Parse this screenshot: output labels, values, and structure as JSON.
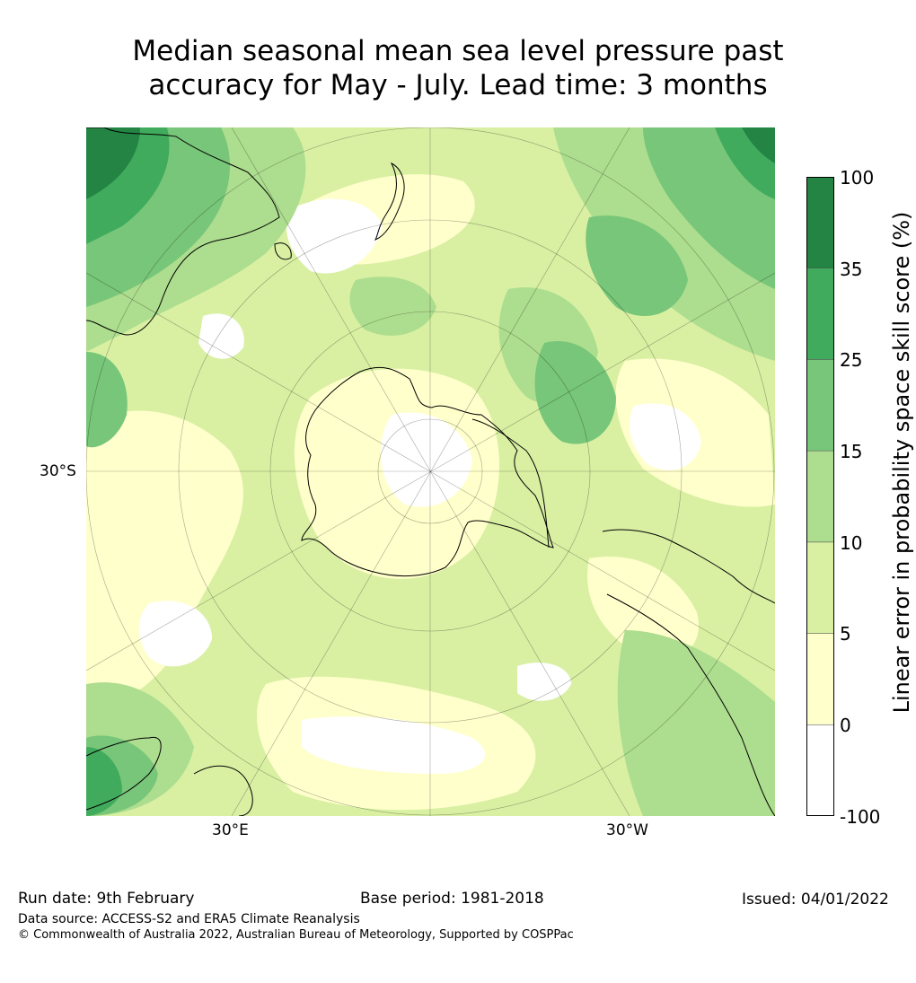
{
  "title_line1": "Median seasonal mean sea level pressure past",
  "title_line2": "accuracy for May - July. Lead time: 3 months",
  "map": {
    "lat_label": "30°S",
    "lon_label_east": "30°E",
    "lon_label_west": "30°W"
  },
  "colorbar": {
    "title": "Linear error in probability space skill score (%)",
    "ticks": [
      "100",
      "35",
      "25",
      "15",
      "10",
      "5",
      "0",
      "-100"
    ],
    "colors": [
      "#ffffff",
      "#ffffcc",
      "#d9f0a3",
      "#addd8e",
      "#78c679",
      "#41ab5d",
      "#238443"
    ]
  },
  "footer": {
    "run_date": "Run date: 9th February",
    "base_period": "Base period: 1981-2018",
    "issued": "Issued: 04/01/2022",
    "data_source": "Data source: ACCESS-S2 and ERA5 Climate Reanalysis",
    "copyright": "© Commonwealth of Australia 2022, Australian Bureau of Meteorology, Supported by COSPPac"
  }
}
